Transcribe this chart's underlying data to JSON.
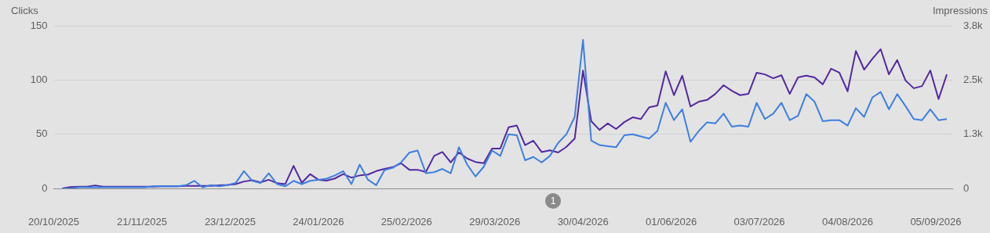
{
  "chart_data": {
    "type": "line",
    "ylabel": "Clicks",
    "y2label": "Impressions",
    "x": [
      "2025-10-23",
      "2025-10-26",
      "2025-10-29",
      "2025-11-01",
      "2025-11-04",
      "2025-11-07",
      "2025-11-10",
      "2025-11-13",
      "2025-11-16",
      "2025-11-19",
      "2025-11-22",
      "2025-11-25",
      "2025-11-28",
      "2025-12-01",
      "2025-12-04",
      "2025-12-07",
      "2025-12-10",
      "2025-12-13",
      "2025-12-16",
      "2025-12-19",
      "2025-12-22",
      "2025-12-25",
      "2025-12-28",
      "2025-12-31",
      "2026-01-03",
      "2026-01-06",
      "2026-01-09",
      "2026-01-12",
      "2026-01-15",
      "2026-01-18",
      "2026-01-21",
      "2026-01-24",
      "2026-01-27",
      "2026-01-30",
      "2026-02-02",
      "2026-02-05",
      "2026-02-08",
      "2026-02-11",
      "2026-02-14",
      "2026-02-17",
      "2026-02-20",
      "2026-02-23",
      "2026-02-26",
      "2026-03-01",
      "2026-03-04",
      "2026-03-07",
      "2026-03-10",
      "2026-03-13",
      "2026-03-16",
      "2026-03-19",
      "2026-03-22",
      "2026-03-25",
      "2026-03-28",
      "2026-03-31",
      "2026-04-03",
      "2026-04-06",
      "2026-04-09",
      "2026-04-12",
      "2026-04-15",
      "2026-04-18",
      "2026-04-21",
      "2026-04-24",
      "2026-04-27",
      "2026-04-30",
      "2026-05-03",
      "2026-05-06",
      "2026-05-09",
      "2026-05-12",
      "2026-05-15",
      "2026-05-18",
      "2026-05-21",
      "2026-05-24",
      "2026-05-27",
      "2026-05-30",
      "2026-06-02",
      "2026-06-05",
      "2026-06-08",
      "2026-06-11",
      "2026-06-14",
      "2026-06-17",
      "2026-06-20",
      "2026-06-23",
      "2026-06-26",
      "2026-06-29",
      "2026-07-02",
      "2026-07-05",
      "2026-07-08",
      "2026-07-11",
      "2026-07-14",
      "2026-07-17",
      "2026-07-20",
      "2026-07-23",
      "2026-07-26",
      "2026-07-29",
      "2026-08-01",
      "2026-08-04",
      "2026-08-07",
      "2026-08-10",
      "2026-08-13",
      "2026-08-16",
      "2026-08-19",
      "2026-08-22",
      "2026-08-25",
      "2026-08-28",
      "2026-08-31",
      "2026-09-03",
      "2026-09-06",
      "2026-09-09"
    ],
    "series": [
      {
        "color": "#3d7fe0",
        "values": [
          0,
          0,
          1,
          1,
          1,
          1,
          1,
          1,
          1,
          1,
          1,
          2,
          2,
          2,
          2,
          3,
          7,
          1,
          3,
          2,
          3,
          5,
          16,
          7,
          5,
          14,
          4,
          2,
          7,
          4,
          7,
          8,
          9,
          12,
          16,
          4,
          22,
          8,
          3,
          17,
          19,
          24,
          33,
          35,
          14,
          15,
          18,
          14,
          38,
          22,
          11,
          20,
          35,
          30,
          50,
          49,
          26,
          29,
          24,
          30,
          42,
          50,
          66,
          137,
          44,
          40,
          39,
          38,
          49,
          50,
          48,
          46,
          53,
          79,
          63,
          73,
          43,
          53,
          61,
          60,
          69,
          57,
          58,
          57,
          79,
          64,
          69,
          79,
          63,
          67,
          87,
          80,
          62,
          63,
          63,
          58,
          74,
          66,
          84,
          89,
          73,
          87,
          76,
          64,
          63,
          73,
          63,
          64
        ]
      },
      {
        "color": "#5329a0",
        "axis": "y2",
        "values": [
          0,
          30,
          40,
          40,
          70,
          40,
          40,
          40,
          40,
          40,
          40,
          40,
          50,
          50,
          50,
          60,
          60,
          60,
          60,
          70,
          80,
          100,
          160,
          190,
          140,
          200,
          120,
          100,
          520,
          130,
          330,
          200,
          180,
          230,
          330,
          250,
          300,
          320,
          400,
          450,
          490,
          580,
          430,
          430,
          380,
          750,
          840,
          600,
          830,
          690,
          610,
          580,
          920,
          920,
          1410,
          1450,
          1000,
          1100,
          840,
          880,
          830,
          960,
          1150,
          2720,
          1550,
          1350,
          1500,
          1370,
          1530,
          1640,
          1600,
          1870,
          1910,
          2700,
          2150,
          2600,
          1890,
          2000,
          2040,
          2180,
          2380,
          2250,
          2150,
          2180,
          2670,
          2630,
          2540,
          2610,
          2180,
          2560,
          2600,
          2560,
          2400,
          2760,
          2670,
          2240,
          3170,
          2740,
          2990,
          3210,
          2630,
          2960,
          2490,
          2310,
          2360,
          2720,
          2060,
          2630
        ]
      }
    ],
    "xlim": [
      "2025-10-20",
      "2026-09-11"
    ],
    "xticks": [
      {
        "value": "2025-10-20",
        "label": "20/10/2025"
      },
      {
        "value": "2025-11-21",
        "label": "21/11/2025"
      },
      {
        "value": "2025-12-23",
        "label": "23/12/2025"
      },
      {
        "value": "2026-01-24",
        "label": "24/01/2026"
      },
      {
        "value": "2026-02-25",
        "label": "25/02/2026"
      },
      {
        "value": "2026-03-29",
        "label": "29/03/2026"
      },
      {
        "value": "2026-04-30",
        "label": "30/04/2026"
      },
      {
        "value": "2026-06-01",
        "label": "01/06/2026"
      },
      {
        "value": "2026-07-03",
        "label": "03/07/2026"
      },
      {
        "value": "2026-08-04",
        "label": "04/08/2026"
      },
      {
        "value": "2026-09-05",
        "label": "05/09/2026"
      }
    ],
    "ylim": [
      0,
      150
    ],
    "yticks": [
      0,
      50,
      100,
      150
    ],
    "y2lim": [
      0,
      3750
    ],
    "y2ticks": [
      0,
      {
        "value": 1250,
        "label": "1.3k"
      },
      {
        "value": 2500,
        "label": "2.5k"
      },
      {
        "value": 3750,
        "label": "3.8k"
      }
    ],
    "annotations": [
      "1"
    ],
    "grid": "y",
    "legend": false,
    "marker": "none",
    "line_style": "solid"
  }
}
